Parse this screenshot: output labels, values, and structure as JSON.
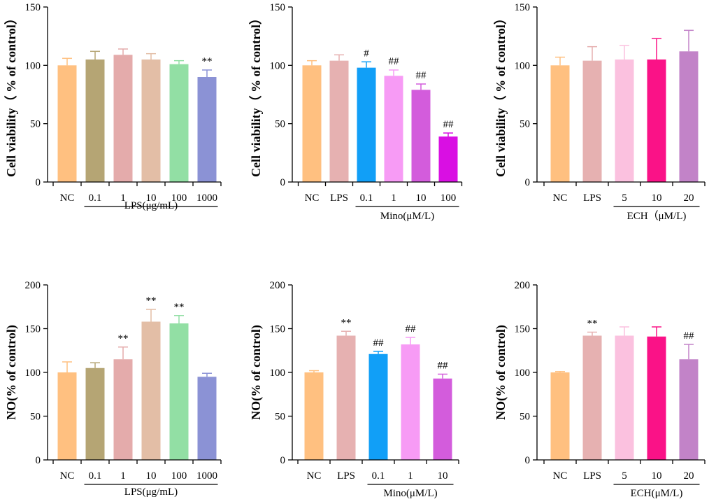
{
  "figure": {
    "description_id": "cell-viability-and-no-panels"
  },
  "chart_data": [
    {
      "type": "bar",
      "ylabel": "Cell viability（ % of control）",
      "ylim": [
        0,
        150
      ],
      "yticks": [
        0,
        50,
        100,
        150
      ],
      "group_label": "LPS(μg/mL)",
      "group_start": 1,
      "categories": [
        "NC",
        "0.1",
        "1",
        "10",
        "100",
        "1000"
      ],
      "values": [
        100,
        105,
        109,
        105,
        101,
        90
      ],
      "errors": [
        6,
        7,
        5,
        5,
        3,
        6
      ],
      "annotations": [
        "",
        "",
        "",
        "",
        "",
        "**"
      ],
      "colors": [
        "#FFC080",
        "#B5A574",
        "#E4ABAB",
        "#E3BEA6",
        "#92DFA4",
        "#8B92D5"
      ]
    },
    {
      "type": "bar",
      "ylabel": "Cell viability（ % of control）",
      "ylim": [
        0,
        150
      ],
      "yticks": [
        0,
        50,
        100,
        150
      ],
      "group_label": "Mino(μM/L)",
      "group_start": 2,
      "categories": [
        "NC",
        "LPS",
        "0.1",
        "1",
        "10",
        "100"
      ],
      "values": [
        100,
        104,
        98,
        91,
        79,
        39
      ],
      "errors": [
        4,
        5,
        5,
        5,
        5,
        3
      ],
      "annotations": [
        "",
        "",
        "#",
        "##",
        "##",
        "##"
      ],
      "colors": [
        "#FFC080",
        "#E6B1B1",
        "#119FF7",
        "#F79BF5",
        "#D35CDC",
        "#D90FE3"
      ]
    },
    {
      "type": "bar",
      "ylabel": "Cell viability（ % of control）",
      "ylim": [
        0,
        150
      ],
      "yticks": [
        0,
        50,
        100,
        150
      ],
      "group_label": "ECH（μM/L)",
      "group_start": 2,
      "categories": [
        "NC",
        "LPS",
        "5",
        "10",
        "20"
      ],
      "values": [
        100,
        104,
        105,
        105,
        112
      ],
      "errors": [
        7,
        12,
        12,
        18,
        18
      ],
      "annotations": [
        "",
        "",
        "",
        "",
        ""
      ],
      "colors": [
        "#FFC080",
        "#E6B1B1",
        "#FBC1DF",
        "#FA1287",
        "#C283C8"
      ]
    },
    {
      "type": "bar",
      "ylabel": "NO(% of control)",
      "ylim": [
        0,
        200
      ],
      "yticks": [
        0,
        50,
        100,
        150,
        200
      ],
      "group_label": "LPS(μg/mL)",
      "group_start": 1,
      "categories": [
        "NC",
        "0.1",
        "1",
        "10",
        "100",
        "1000"
      ],
      "values": [
        100,
        105,
        115,
        158,
        156,
        95
      ],
      "errors": [
        12,
        6,
        14,
        14,
        9,
        4
      ],
      "annotations": [
        "",
        "",
        "**",
        "**",
        "**",
        ""
      ],
      "colors": [
        "#FFC080",
        "#B5A574",
        "#E4ABAB",
        "#E3BEA6",
        "#92DFA4",
        "#8B92D5"
      ]
    },
    {
      "type": "bar",
      "ylabel": "NO(% of control)",
      "ylim": [
        0,
        200
      ],
      "yticks": [
        0,
        50,
        100,
        150,
        200
      ],
      "group_label": "Mino(μM/L)",
      "group_start": 2,
      "categories": [
        "NC",
        "LPS",
        "0.1",
        "1",
        "10"
      ],
      "values": [
        100,
        142,
        121,
        132,
        93
      ],
      "errors": [
        2,
        5,
        3,
        8,
        5
      ],
      "annotations": [
        "",
        "**",
        "##",
        "##",
        "##"
      ],
      "colors": [
        "#FFC080",
        "#E6B1B1",
        "#119FF7",
        "#F79BF5",
        "#D35CDC"
      ]
    },
    {
      "type": "bar",
      "ylabel": "NO(% of control)",
      "ylim": [
        0,
        200
      ],
      "yticks": [
        0,
        50,
        100,
        150,
        200
      ],
      "group_label": "ECH(μM/L)",
      "group_start": 2,
      "categories": [
        "NC",
        "LPS",
        "5",
        "10",
        "20"
      ],
      "values": [
        100,
        142,
        142,
        141,
        115
      ],
      "errors": [
        1,
        4,
        10,
        11,
        17
      ],
      "annotations": [
        "",
        "**",
        "",
        "",
        "##"
      ],
      "colors": [
        "#FFC080",
        "#E6B1B1",
        "#FBC1DF",
        "#FA1287",
        "#C283C8"
      ]
    }
  ]
}
